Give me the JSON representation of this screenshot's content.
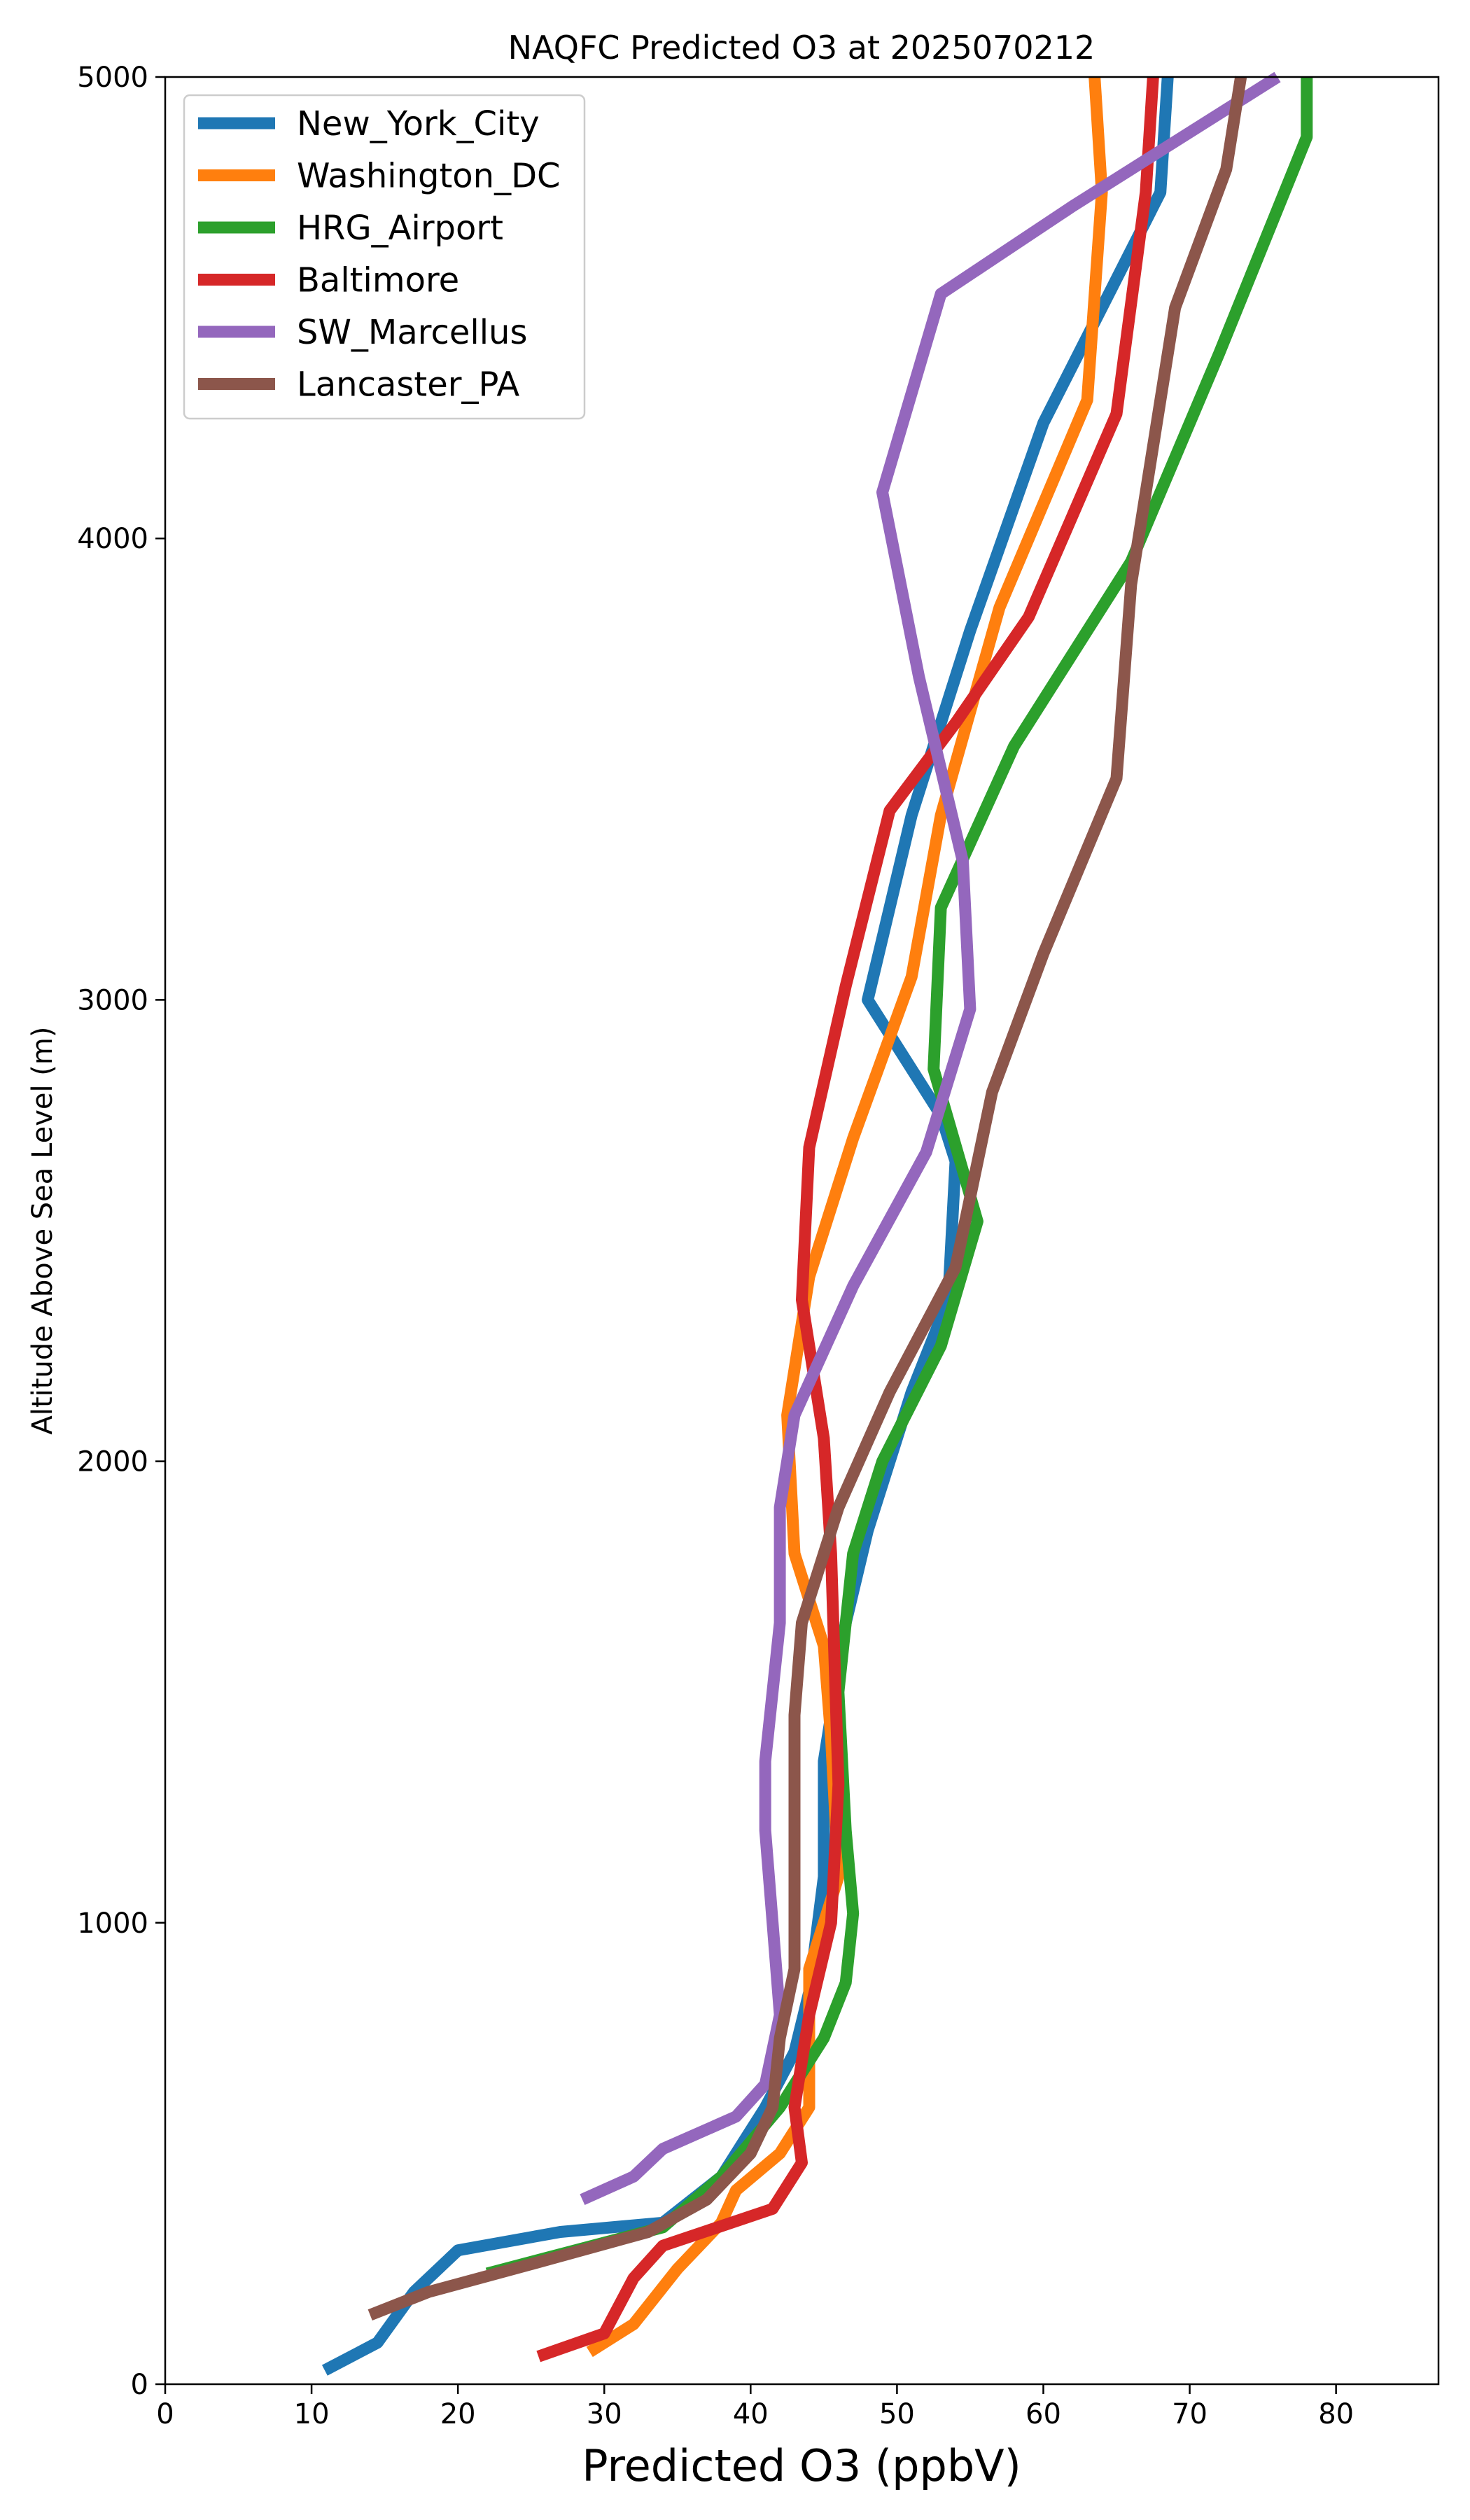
{
  "chart_data": {
    "type": "line",
    "title": "NAQFC Predicted O3 at 2025070212",
    "xlabel": "Predicted O3 (ppbV)",
    "ylabel": "Altitude Above Sea Level (m)",
    "xlim": [
      0,
      87
    ],
    "ylim": [
      0,
      5000
    ],
    "xticks": [
      0,
      10,
      20,
      30,
      40,
      50,
      60,
      70,
      80
    ],
    "yticks": [
      0,
      1000,
      2000,
      3000,
      4000,
      5000
    ],
    "grid": false,
    "legend_position": "upper-left",
    "series": [
      {
        "name": "New_York_City",
        "color": "#1f77b4",
        "points": [
          [
            10.9,
            30
          ],
          [
            14.5,
            90
          ],
          [
            17,
            200
          ],
          [
            20,
            290
          ],
          [
            27,
            330
          ],
          [
            34,
            350
          ],
          [
            38,
            450
          ],
          [
            41,
            600
          ],
          [
            43,
            720
          ],
          [
            44,
            850
          ],
          [
            45,
            1100
          ],
          [
            45,
            1350
          ],
          [
            45.5,
            1450
          ],
          [
            46.5,
            1650
          ],
          [
            48,
            1850
          ],
          [
            51,
            2150
          ],
          [
            53.5,
            2350
          ],
          [
            54,
            2650
          ],
          [
            53,
            2750
          ],
          [
            48,
            3000
          ],
          [
            51,
            3400
          ],
          [
            55,
            3800
          ],
          [
            60,
            4250
          ],
          [
            64,
            4500
          ],
          [
            68,
            4750
          ],
          [
            68.5,
            5000
          ]
        ]
      },
      {
        "name": "Washington_DC",
        "color": "#ff7f0e",
        "points": [
          [
            29,
            70
          ],
          [
            32,
            130
          ],
          [
            35,
            250
          ],
          [
            38,
            350
          ],
          [
            39,
            420
          ],
          [
            42,
            500
          ],
          [
            44,
            600
          ],
          [
            44,
            900
          ],
          [
            46,
            1100
          ],
          [
            45.5,
            1400
          ],
          [
            45,
            1600
          ],
          [
            43,
            1800
          ],
          [
            42.5,
            2100
          ],
          [
            44,
            2400
          ],
          [
            47,
            2700
          ],
          [
            51,
            3050
          ],
          [
            53,
            3400
          ],
          [
            57,
            3850
          ],
          [
            63,
            4300
          ],
          [
            64,
            4750
          ],
          [
            63.5,
            5000
          ]
        ]
      },
      {
        "name": "HRG_Airport",
        "color": "#2ca02c",
        "points": [
          [
            22,
            240
          ],
          [
            28,
            290
          ],
          [
            34,
            340
          ],
          [
            38,
            450
          ],
          [
            42,
            600
          ],
          [
            45,
            750
          ],
          [
            46.5,
            870
          ],
          [
            47,
            1020
          ],
          [
            46.5,
            1200
          ],
          [
            46,
            1500
          ],
          [
            47,
            1800
          ],
          [
            49,
            2000
          ],
          [
            53,
            2250
          ],
          [
            55.5,
            2520
          ],
          [
            52.5,
            2850
          ],
          [
            53,
            3200
          ],
          [
            58,
            3550
          ],
          [
            66,
            3950
          ],
          [
            72,
            4400
          ],
          [
            78,
            4870
          ],
          [
            78,
            5000
          ]
        ]
      },
      {
        "name": "Baltimore",
        "color": "#d62728",
        "points": [
          [
            25.5,
            60
          ],
          [
            30,
            110
          ],
          [
            32,
            230
          ],
          [
            34,
            300
          ],
          [
            41.5,
            380
          ],
          [
            43.5,
            480
          ],
          [
            43,
            600
          ],
          [
            44,
            800
          ],
          [
            45.5,
            1000
          ],
          [
            46,
            1300
          ],
          [
            45.5,
            1800
          ],
          [
            45,
            2050
          ],
          [
            43.5,
            2350
          ],
          [
            44,
            2680
          ],
          [
            46.5,
            3030
          ],
          [
            49.5,
            3410
          ],
          [
            54,
            3600
          ],
          [
            59,
            3830
          ],
          [
            65,
            4270
          ],
          [
            67,
            4750
          ],
          [
            67.5,
            5000
          ]
        ]
      },
      {
        "name": "SW_Marcellus",
        "color": "#9467bd",
        "points": [
          [
            28.5,
            400
          ],
          [
            32,
            450
          ],
          [
            34,
            510
          ],
          [
            39,
            580
          ],
          [
            41,
            650
          ],
          [
            42,
            800
          ],
          [
            41.5,
            1000
          ],
          [
            41,
            1200
          ],
          [
            41,
            1350
          ],
          [
            42,
            1650
          ],
          [
            42,
            1900
          ],
          [
            43,
            2100
          ],
          [
            47,
            2380
          ],
          [
            52,
            2670
          ],
          [
            55,
            2980
          ],
          [
            54.5,
            3300
          ],
          [
            51.5,
            3700
          ],
          [
            49,
            4100
          ],
          [
            53,
            4530
          ],
          [
            62,
            4720
          ],
          [
            76,
            5000
          ]
        ]
      },
      {
        "name": "Lancaster_PA",
        "color": "#8c564b",
        "points": [
          [
            14,
            150
          ],
          [
            18,
            200
          ],
          [
            25,
            260
          ],
          [
            33,
            330
          ],
          [
            37,
            400
          ],
          [
            40,
            500
          ],
          [
            41.5,
            600
          ],
          [
            42,
            750
          ],
          [
            43,
            900
          ],
          [
            43,
            1250
          ],
          [
            43,
            1450
          ],
          [
            43.5,
            1650
          ],
          [
            46,
            1900
          ],
          [
            49.5,
            2150
          ],
          [
            54,
            2420
          ],
          [
            56.5,
            2800
          ],
          [
            60,
            3100
          ],
          [
            65,
            3480
          ],
          [
            66,
            3900
          ],
          [
            69,
            4500
          ],
          [
            72.5,
            4800
          ],
          [
            73.5,
            5000
          ]
        ]
      }
    ]
  }
}
